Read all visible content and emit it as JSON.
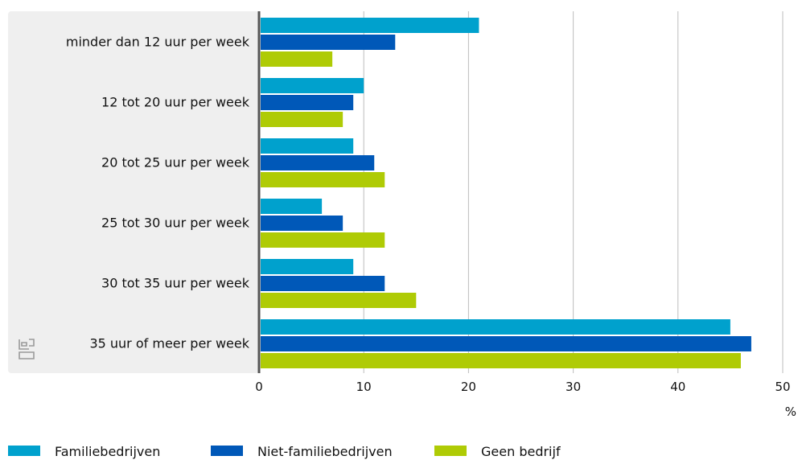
{
  "chart_data": {
    "type": "bar",
    "orientation": "horizontal",
    "categories": [
      "minder dan 12 uur per week",
      "12 tot 20 uur per week",
      "20 tot 25 uur per week",
      "25 tot 30 uur per week",
      "30 tot 35 uur per week",
      "35 uur of meer per week"
    ],
    "series": [
      {
        "name": "Familiebedrijven",
        "color": "#00a1cd",
        "values": [
          21,
          10,
          9,
          6,
          9,
          45
        ]
      },
      {
        "name": "Niet-familiebedrijven",
        "color": "#0058b8",
        "values": [
          13,
          9,
          11,
          8,
          12,
          47
        ]
      },
      {
        "name": "Geen bedrijf",
        "color": "#afcb05",
        "values": [
          7,
          8,
          12,
          12,
          15,
          46
        ]
      }
    ],
    "x_ticks": [
      0,
      10,
      20,
      30,
      40,
      50
    ],
    "xlim": [
      0,
      50
    ],
    "unit": "%",
    "grid": true,
    "legend_position": "bottom-left",
    "logo_icon": "cbs-logo-icon"
  }
}
